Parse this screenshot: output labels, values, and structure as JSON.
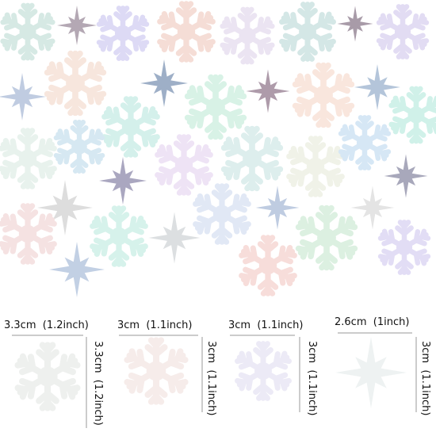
{
  "items": [
    {
      "width": "3.3cm  (1.2inch)",
      "height": "3.3cm  (1.2inch)"
    },
    {
      "width": "3cm  (1.1inch)",
      "height": "3cm  (1.1inch)"
    },
    {
      "width": "3cm  (1.1inch)",
      "height": "3cm  (1.1inch)"
    },
    {
      "width": "2.6cm  (1inch)",
      "height": "3cm  (1.1inch)"
    }
  ]
}
